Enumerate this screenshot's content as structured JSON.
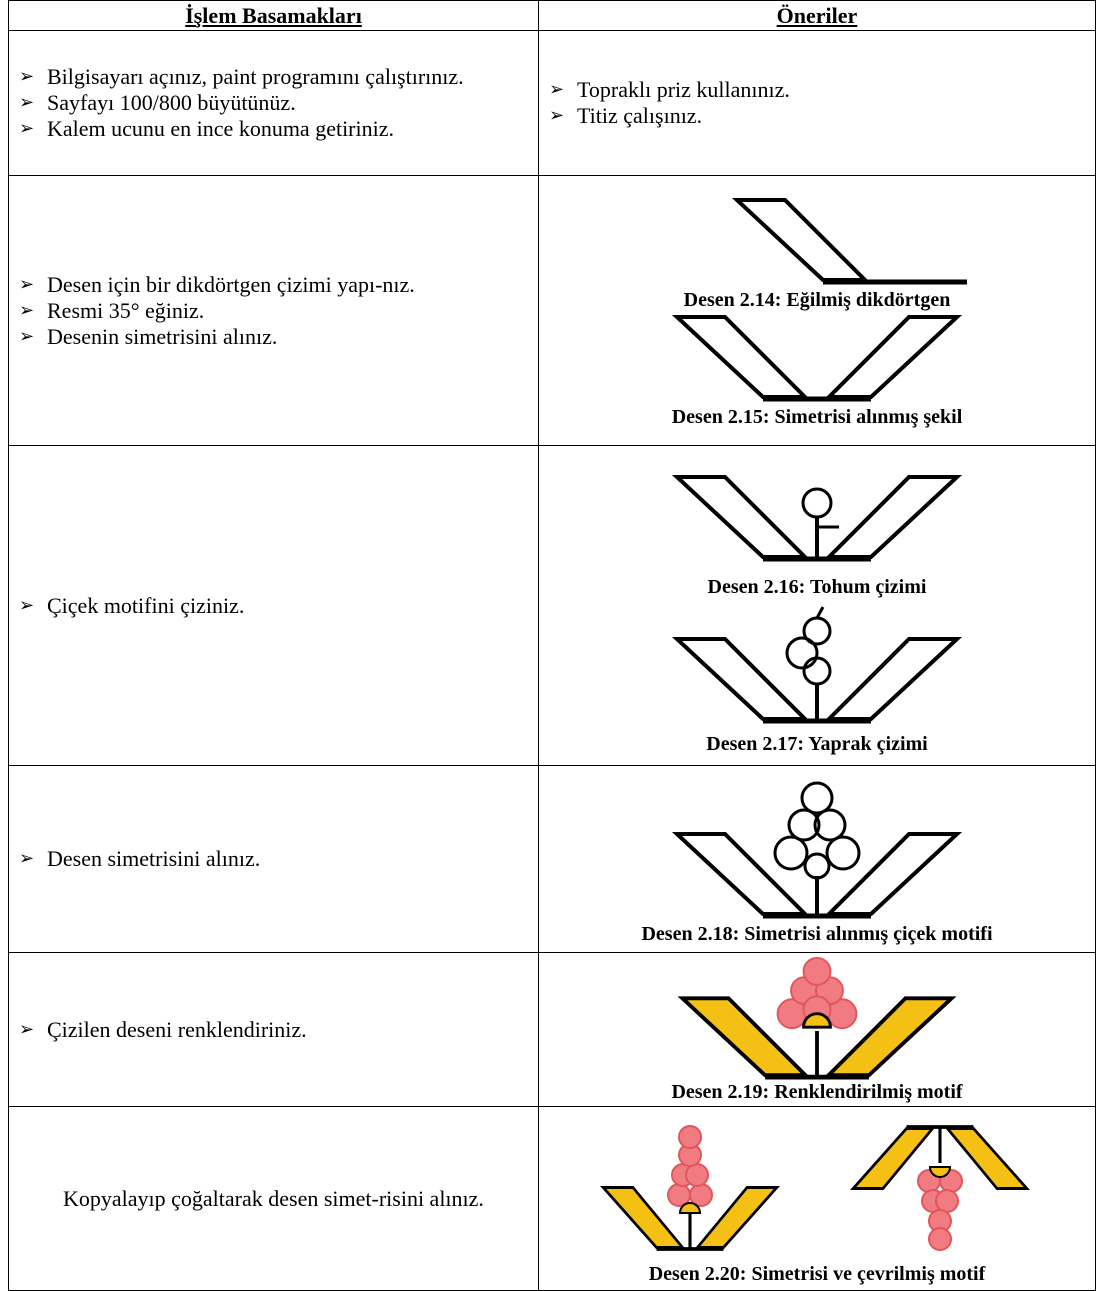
{
  "header": {
    "col1": "İşlem Basamakları",
    "col2": "Öneriler"
  },
  "rows": [
    {
      "steps": [
        "Bilgisayarı açınız, paint programını çalıştırınız.",
        "Sayfayı 100/800 büyütünüz.",
        "Kalem ucunu en ince konuma getiriniz."
      ],
      "tips": [
        "Topraklı priz kullanınız.",
        "Titiz çalışınız."
      ]
    },
    {
      "steps": [
        "Desen için bir dikdörtgen çizimi yapı-nız.",
        "Resmi 35° eğiniz.",
        "Desenin simetrisini alınız."
      ],
      "figures": [
        "Desen 2.14: Eğilmiş dikdörtgen",
        "Desen 2.15: Simetrisi alınmış şekil"
      ]
    },
    {
      "steps": [
        "Çiçek motifini çiziniz."
      ],
      "figures": [
        "Desen 2.16: Tohum çizimi",
        "Desen 2.17: Yaprak çizimi"
      ]
    },
    {
      "steps": [
        "Desen simetrisini alınız."
      ],
      "figures": [
        "Desen 2.18: Simetrisi alınmış çiçek motifi"
      ]
    },
    {
      "steps": [
        "Çizilen deseni renklendiriniz."
      ],
      "figures": [
        "Desen 2.19: Renklendirilmiş motif"
      ]
    },
    {
      "paragraph": "Kopyalayıp çoğaltarak desen simet-risini alınız.",
      "figures": [
        "Desen 2.20: Simetrisi  ve çevrilmiş motif"
      ]
    }
  ]
}
